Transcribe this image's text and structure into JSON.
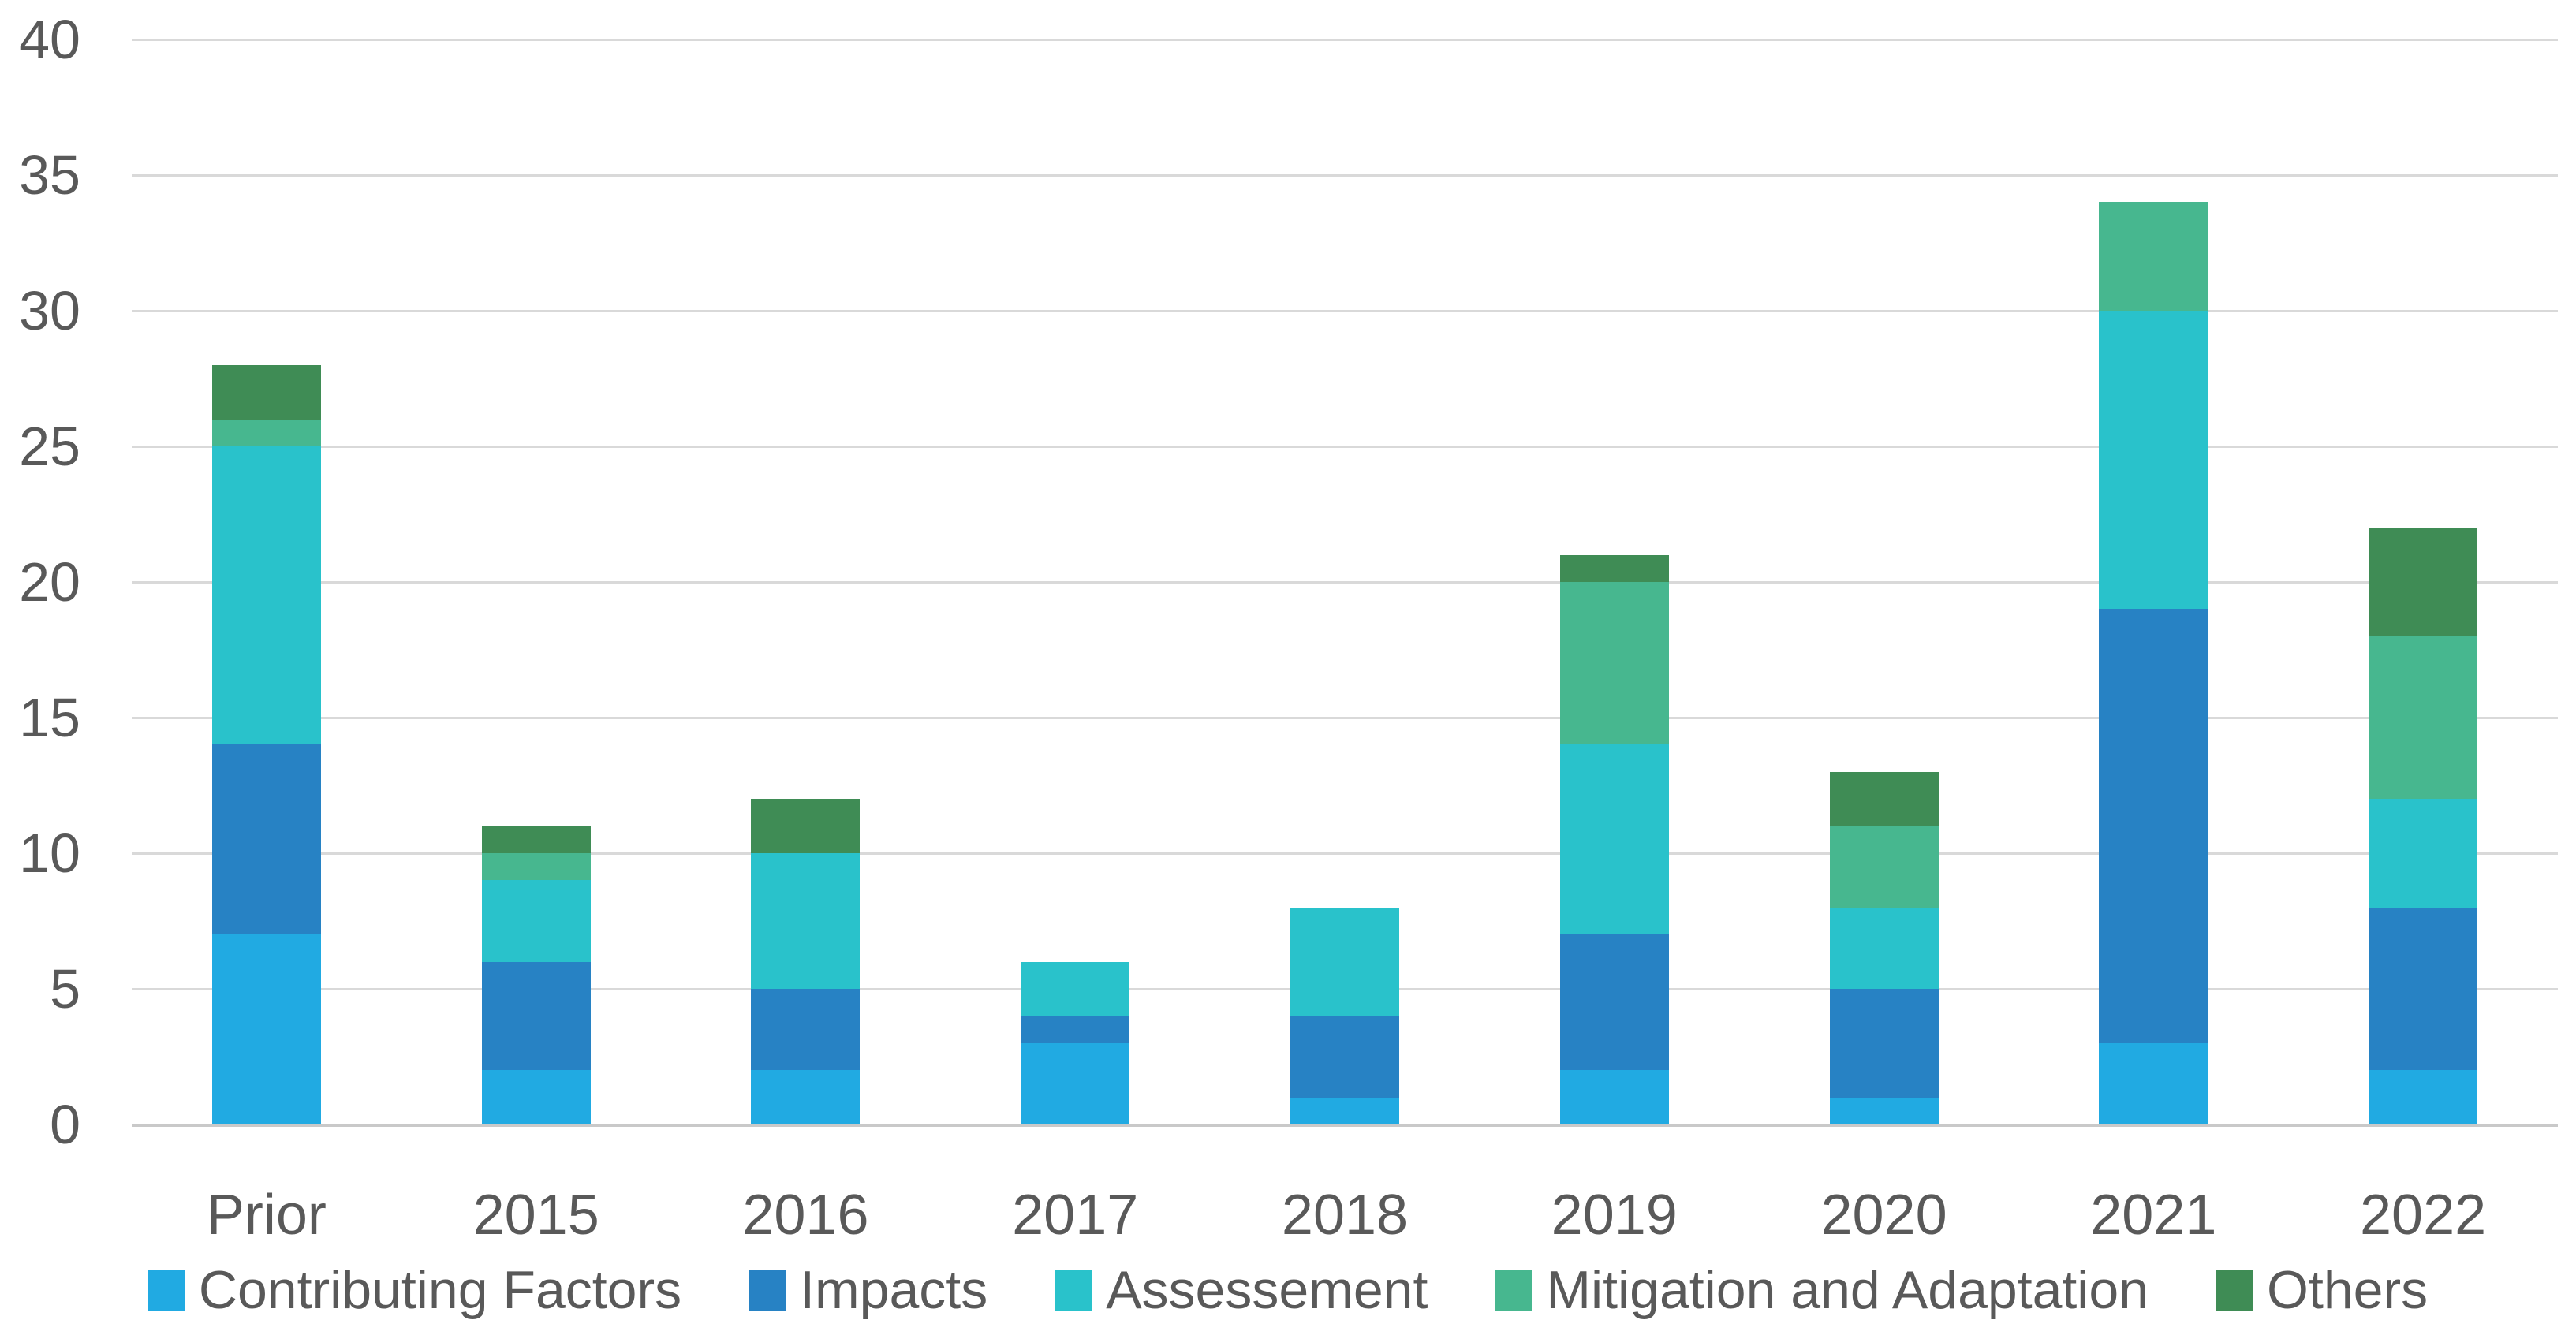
{
  "chart_data": {
    "type": "bar",
    "stacked": true,
    "title": "",
    "categories": [
      "Prior",
      "2015",
      "2016",
      "2017",
      "2018",
      "2019",
      "2020",
      "2021",
      "2022"
    ],
    "series": [
      {
        "name": "Contributing Factors",
        "color": "#21AAE2",
        "values": [
          7,
          2,
          2,
          3,
          1,
          2,
          1,
          3,
          2
        ]
      },
      {
        "name": "Impacts",
        "color": "#2782C4",
        "values": [
          7,
          4,
          3,
          1,
          3,
          5,
          4,
          16,
          6
        ]
      },
      {
        "name": "Assessement",
        "color": "#29C2CB",
        "values": [
          11,
          3,
          5,
          2,
          4,
          7,
          3,
          11,
          4
        ]
      },
      {
        "name": "Mitigation and Adaptation",
        "color": "#47B78F",
        "values": [
          1,
          1,
          0,
          0,
          0,
          6,
          3,
          4,
          6
        ]
      },
      {
        "name": "Others",
        "color": "#3F8C55",
        "values": [
          2,
          1,
          2,
          0,
          0,
          1,
          2,
          0,
          4
        ]
      }
    ],
    "xlabel": "",
    "ylabel": "",
    "y_axis": {
      "min": 0,
      "max": 40,
      "tick_step": 5,
      "tick_labels": [
        "0",
        "5",
        "10",
        "15",
        "20",
        "25",
        "30",
        "35",
        "40"
      ]
    },
    "grid": true,
    "legend_position": "bottom"
  },
  "style": {
    "background": "#FFFFFF",
    "text_color": "#595959",
    "gridline_color": "#D9D9D9",
    "axis_line_color": "#C9C9C9"
  }
}
